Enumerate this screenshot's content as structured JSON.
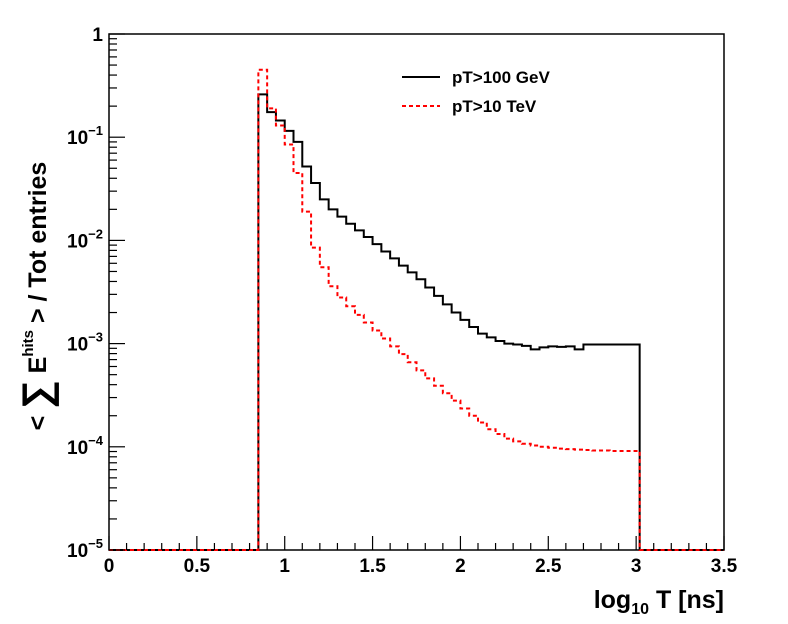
{
  "chart_data": {
    "type": "line",
    "style": "step-histogram",
    "title": "",
    "xlabel": "log10 T [ns]",
    "ylabel": "< ∑ E^hits > / Tot entries",
    "xlim": [
      0,
      3.5
    ],
    "ylim": [
      1e-05,
      1
    ],
    "y_scale": "log",
    "grid": false,
    "legend_position": "top-right",
    "x_ticks": [
      "0",
      "0.5",
      "1",
      "1.5",
      "2",
      "2.5",
      "3",
      "3.5"
    ],
    "bin_edges": [
      0.85,
      0.9,
      0.95,
      1.0,
      1.05,
      1.1,
      1.15,
      1.2,
      1.25,
      1.3,
      1.35,
      1.4,
      1.45,
      1.5,
      1.55,
      1.6,
      1.65,
      1.7,
      1.75,
      1.8,
      1.85,
      1.9,
      1.95,
      2.0,
      2.05,
      2.1,
      2.15,
      2.2,
      2.25,
      2.3,
      2.35,
      2.4,
      2.45,
      2.5,
      2.55,
      2.6,
      2.65,
      2.7,
      2.75,
      2.8,
      2.85,
      2.9,
      2.95,
      3.0,
      3.02
    ],
    "series": [
      {
        "name": "pT>100 GeV",
        "color": "#000000",
        "dash": "solid",
        "values": [
          0.26,
          0.175,
          0.145,
          0.115,
          0.09,
          0.052,
          0.036,
          0.025,
          0.02,
          0.017,
          0.0145,
          0.0125,
          0.0108,
          0.0092,
          0.0078,
          0.0067,
          0.0057,
          0.0049,
          0.0042,
          0.0035,
          0.0029,
          0.0024,
          0.002,
          0.0017,
          0.00145,
          0.00125,
          0.00115,
          0.00106,
          0.001,
          0.00098,
          0.00095,
          0.00088,
          0.00092,
          0.00094,
          0.00093,
          0.00094,
          0.00088,
          0.00098,
          0.00098,
          0.00098,
          0.00098,
          0.00098,
          0.00098,
          0.00098
        ]
      },
      {
        "name": "pT>10 TeV",
        "color": "#ff0000",
        "dash": "dashed",
        "values": [
          0.45,
          0.19,
          0.13,
          0.085,
          0.045,
          0.019,
          0.0085,
          0.0055,
          0.0036,
          0.0028,
          0.0023,
          0.0019,
          0.0016,
          0.00134,
          0.00112,
          0.00094,
          0.00079,
          0.00066,
          0.00055,
          0.00046,
          0.00039,
          0.00033,
          0.00028,
          0.000235,
          0.0002,
          0.000172,
          0.000148,
          0.000133,
          0.00012,
          0.000113,
          0.000107,
          0.000103,
          0.0001,
          9.8e-05,
          9.6e-05,
          9.5e-05,
          9.4e-05,
          9.3e-05,
          9.2e-05,
          9.2e-05,
          9.1e-05,
          9.1e-05,
          9.1e-05,
          9.1e-05
        ]
      }
    ]
  }
}
